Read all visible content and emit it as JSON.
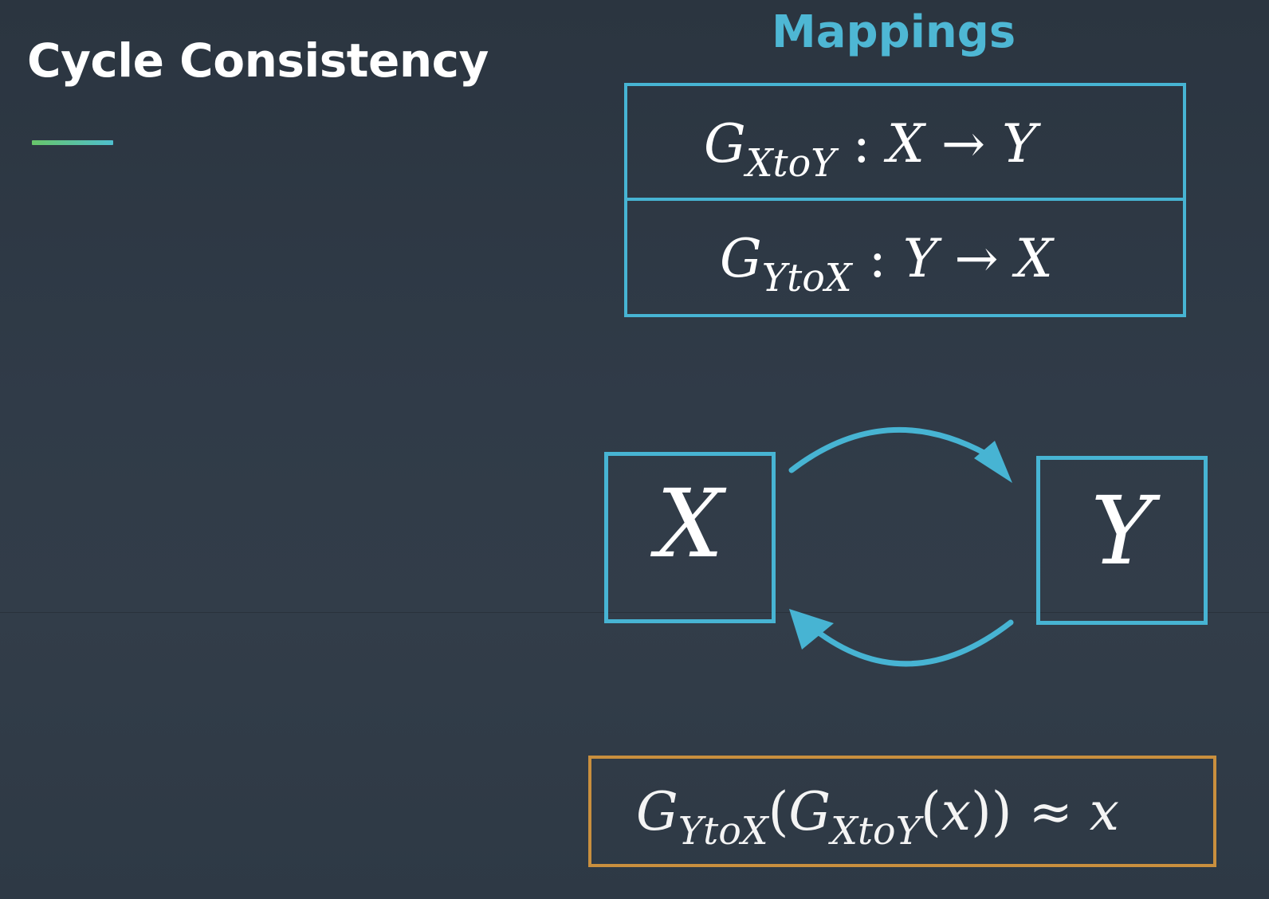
{
  "slide": {
    "title": "Cycle Consistency"
  },
  "mappings": {
    "heading": "Mappings",
    "rows": [
      {
        "G": "G",
        "sub": "XtoY",
        "colon": ":",
        "from": "X",
        "arrow": "→",
        "to": "Y"
      },
      {
        "G": "G",
        "sub": "YtoX",
        "colon": ":",
        "from": "Y",
        "arrow": "→",
        "to": "X"
      }
    ]
  },
  "cycle_diagram": {
    "left_set": "X",
    "right_set": "Y",
    "arrow_color": "#47b4d3"
  },
  "consistency": {
    "outer_G": "G",
    "outer_sub": "YtoX",
    "open_paren_1": "(",
    "inner_G": "G",
    "inner_sub": "XtoY",
    "open_paren_2": "(",
    "arg": "x",
    "close_parens": "))",
    "approx": "≈",
    "result": "x"
  },
  "colors": {
    "accent_blue": "#47b4d3",
    "heading_blue": "#4eb7d4",
    "consistency_orange": "#c98f3e",
    "underline_green": "#68c56a"
  }
}
